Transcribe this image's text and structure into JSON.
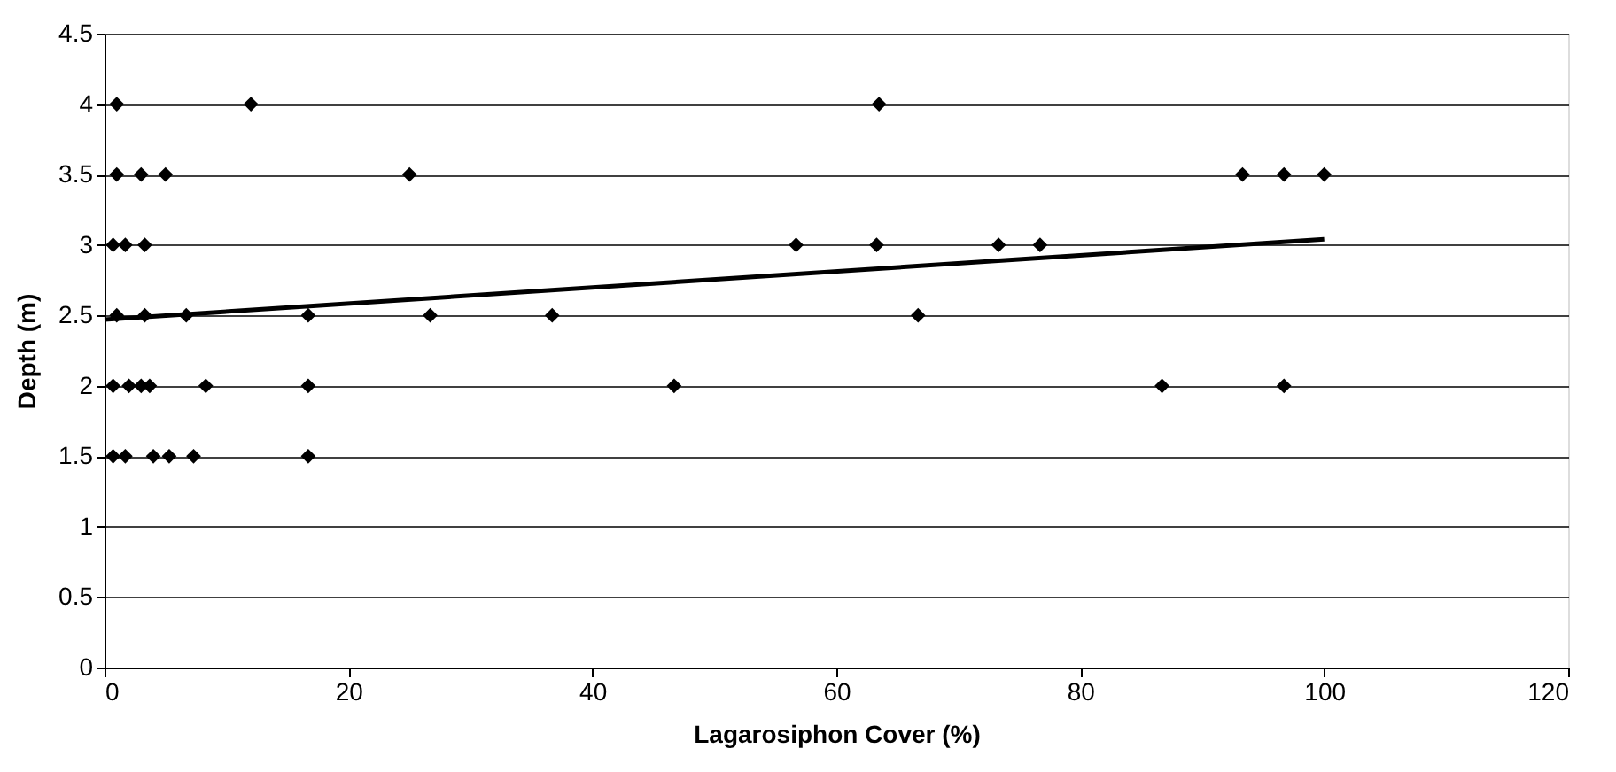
{
  "chart_data": {
    "type": "scatter",
    "xlabel": "Lagarosiphon Cover (%)",
    "ylabel": "Depth (m)",
    "xlim": [
      0,
      120
    ],
    "xticks": [
      0,
      20,
      40,
      60,
      80,
      100,
      120
    ],
    "ylim": [
      0,
      4.5
    ],
    "yticks": [
      0,
      0.5,
      1,
      1.5,
      2,
      2.5,
      3,
      3.5,
      4,
      4.5
    ],
    "grid": "y",
    "series": [
      {
        "color": "#000000",
        "marker": "diamond",
        "x": [
          1,
          12,
          63.5,
          1,
          3,
          5,
          25,
          93.3,
          96.7,
          100,
          0.7,
          1.7,
          3.3,
          56.7,
          63.3,
          73.3,
          76.7,
          1,
          3.3,
          6.7,
          16.7,
          26.7,
          36.7,
          66.7,
          0.7,
          2,
          3,
          3.7,
          8.3,
          16.7,
          46.7,
          86.7,
          96.7,
          0.7,
          1.7,
          4,
          5.3,
          7.3,
          16.7
        ],
        "values": [
          4,
          4,
          4,
          3.5,
          3.5,
          3.5,
          3.5,
          3.5,
          3.5,
          3.5,
          3,
          3,
          3,
          3,
          3,
          3,
          3,
          2.5,
          2.5,
          2.5,
          2.5,
          2.5,
          2.5,
          2.5,
          2,
          2,
          2,
          2,
          2,
          2,
          2,
          2,
          2,
          1.5,
          1.5,
          1.5,
          1.5,
          1.5,
          1.5
        ]
      },
      {
        "type": "line",
        "color": "#000000",
        "x": [
          0,
          100
        ],
        "values": [
          2.47,
          3.04
        ],
        "line_style": "solid"
      }
    ]
  }
}
